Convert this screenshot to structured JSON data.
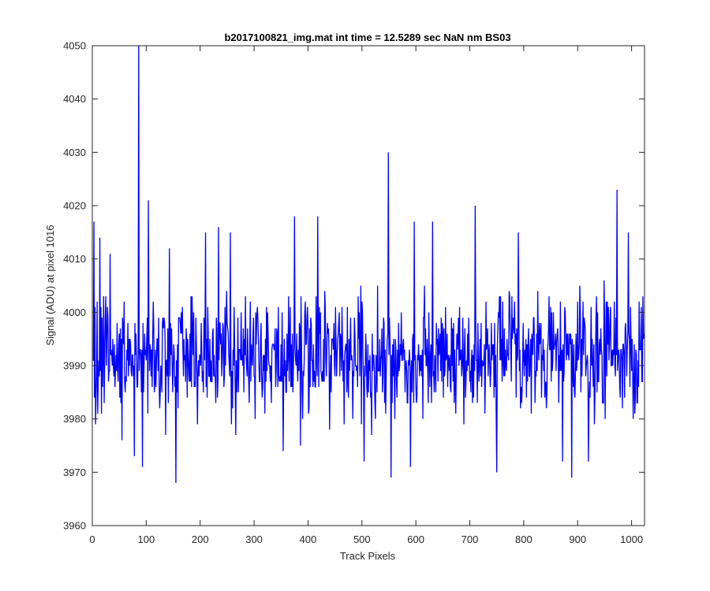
{
  "chart_data": {
    "type": "line",
    "title": "b2017100821_img.mat int time = 12.5289 sec  NaN nm BS03",
    "xlabel": "Track Pixels",
    "ylabel": "Signal (ADU) at pixel 1016",
    "xlim": [
      0,
      1024
    ],
    "ylim": [
      3960,
      4050
    ],
    "xticks": [
      0,
      100,
      200,
      300,
      400,
      500,
      600,
      700,
      800,
      900,
      1000
    ],
    "yticks": [
      3960,
      3970,
      3980,
      3990,
      4000,
      4010,
      4020,
      4030,
      4040,
      4050
    ],
    "grid": false,
    "legend": "none",
    "colors": {
      "line": "#0000ff",
      "axes": "#262626",
      "background": "#ffffff"
    },
    "series": [
      {
        "x_start": 1,
        "x_step": 1,
        "noise_mean": 3992,
        "noise_range": [
          3976,
          4008
        ],
        "values_summary": "dense noisy signal fluctuating ~3976-4008 with spikes",
        "spikes": [
          {
            "x": 3,
            "y": 4017
          },
          {
            "x": 6,
            "y": 3979
          },
          {
            "x": 14,
            "y": 4014
          },
          {
            "x": 33,
            "y": 4011
          },
          {
            "x": 55,
            "y": 3976
          },
          {
            "x": 78,
            "y": 3973
          },
          {
            "x": 86,
            "y": 4050
          },
          {
            "x": 93,
            "y": 3971
          },
          {
            "x": 104,
            "y": 4021
          },
          {
            "x": 136,
            "y": 3977
          },
          {
            "x": 143,
            "y": 4012
          },
          {
            "x": 155,
            "y": 3968
          },
          {
            "x": 210,
            "y": 4015
          },
          {
            "x": 234,
            "y": 4016
          },
          {
            "x": 256,
            "y": 4015
          },
          {
            "x": 354,
            "y": 3974
          },
          {
            "x": 375,
            "y": 4018
          },
          {
            "x": 386,
            "y": 3975
          },
          {
            "x": 418,
            "y": 4018
          },
          {
            "x": 504,
            "y": 3972
          },
          {
            "x": 549,
            "y": 4030
          },
          {
            "x": 554,
            "y": 3969
          },
          {
            "x": 590,
            "y": 3971
          },
          {
            "x": 597,
            "y": 4017
          },
          {
            "x": 631,
            "y": 4017
          },
          {
            "x": 710,
            "y": 4020
          },
          {
            "x": 750,
            "y": 3970
          },
          {
            "x": 790,
            "y": 4015
          },
          {
            "x": 872,
            "y": 3972
          },
          {
            "x": 889,
            "y": 3969
          },
          {
            "x": 920,
            "y": 3972
          },
          {
            "x": 973,
            "y": 4023
          },
          {
            "x": 994,
            "y": 4015
          },
          {
            "x": 1003,
            "y": 3980
          }
        ]
      }
    ]
  }
}
